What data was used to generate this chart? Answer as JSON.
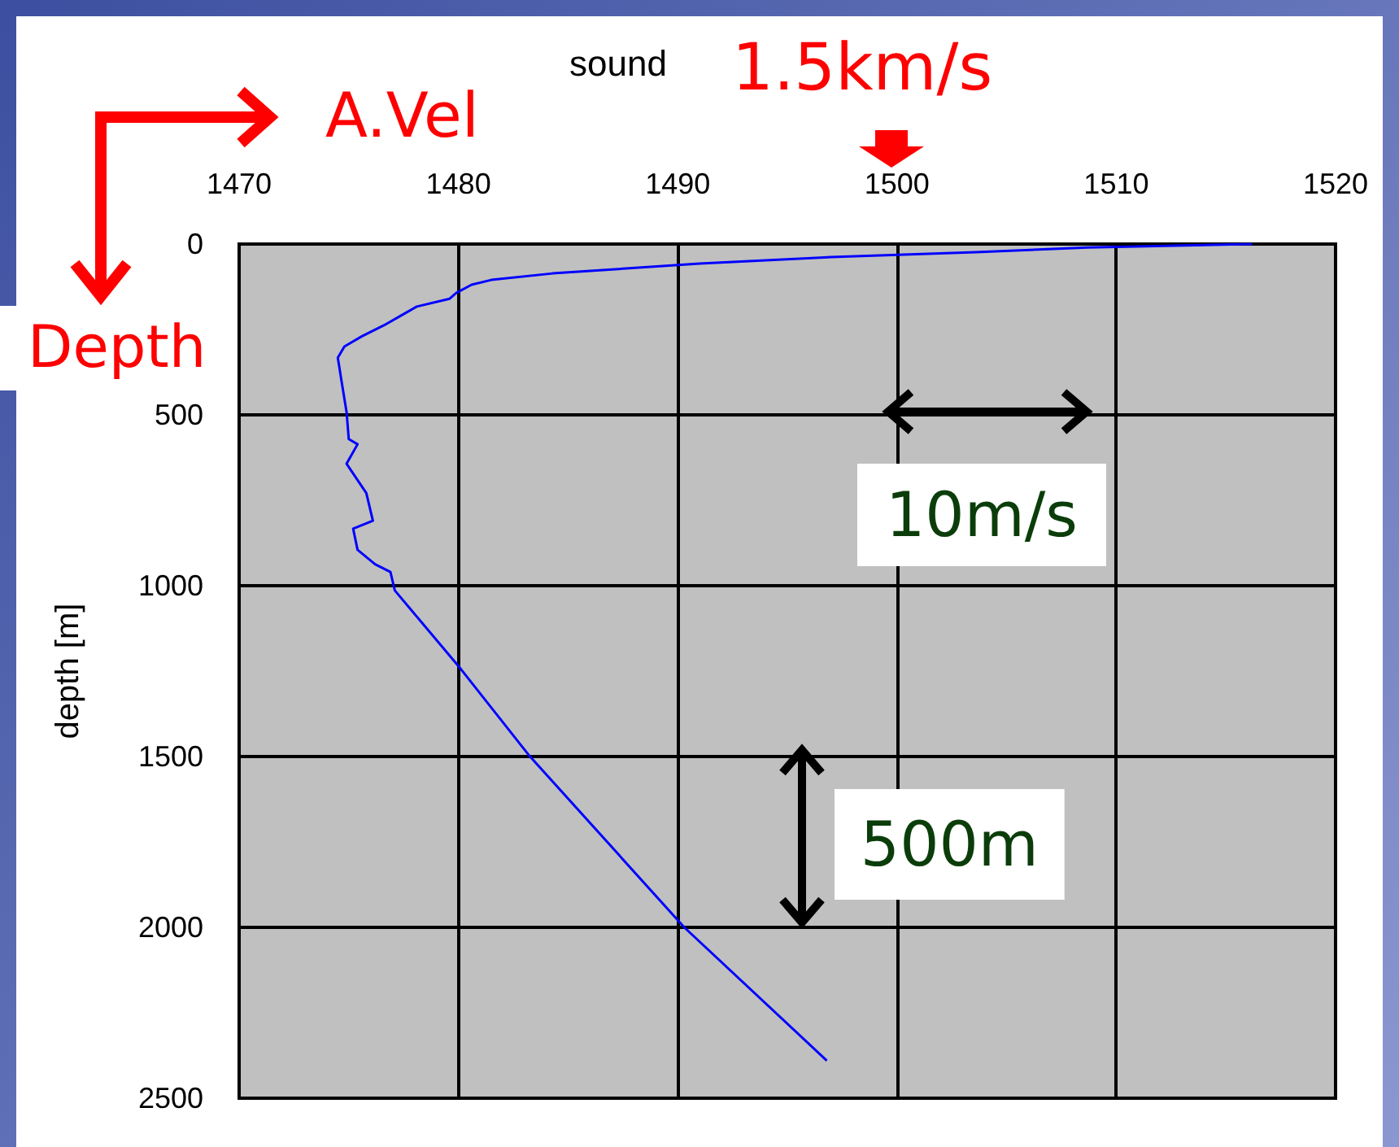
{
  "chart_data": {
    "type": "line",
    "xlabel": "sound",
    "ylabel": "depth [m]",
    "x": [
      1516.2,
      1514,
      1508.7,
      1503.6,
      1497,
      1491,
      1484.3,
      1481.5,
      1480.6,
      1479.9,
      1479.6,
      1478.1,
      1477.5,
      1476.6,
      1475.6,
      1474.8,
      1474.5,
      1474.7,
      1474.9,
      1475.0,
      1475.4,
      1474.9,
      1475.8,
      1476.1,
      1475.2,
      1475.4,
      1476.2,
      1476.9,
      1477.1,
      1480.1,
      1483.2,
      1490.3,
      1496.8
    ],
    "series": [
      {
        "color": "#0000ff",
        "values": [
          0,
          3,
          10,
          24,
          38,
          57,
          86,
          105,
          119,
          143,
          160,
          183,
          205,
          238,
          270,
          300,
          333,
          413,
          492,
          571,
          586,
          643,
          729,
          810,
          833,
          895,
          937,
          960,
          1014,
          1243,
          1495,
          2000,
          2390
        ]
      }
    ],
    "xlim": [
      1470,
      1520
    ],
    "xticks": [
      1470,
      1480,
      1490,
      1500,
      1510,
      1520
    ],
    "ylim": [
      2500,
      0
    ],
    "yticks": [
      0,
      500,
      1000,
      1500,
      2000,
      2500
    ],
    "grid": true,
    "marker": "none",
    "line_style": "solid",
    "annotations": [
      "A.Vel",
      "1.5km/s",
      "Depth",
      "10m/s",
      "500m"
    ]
  }
}
